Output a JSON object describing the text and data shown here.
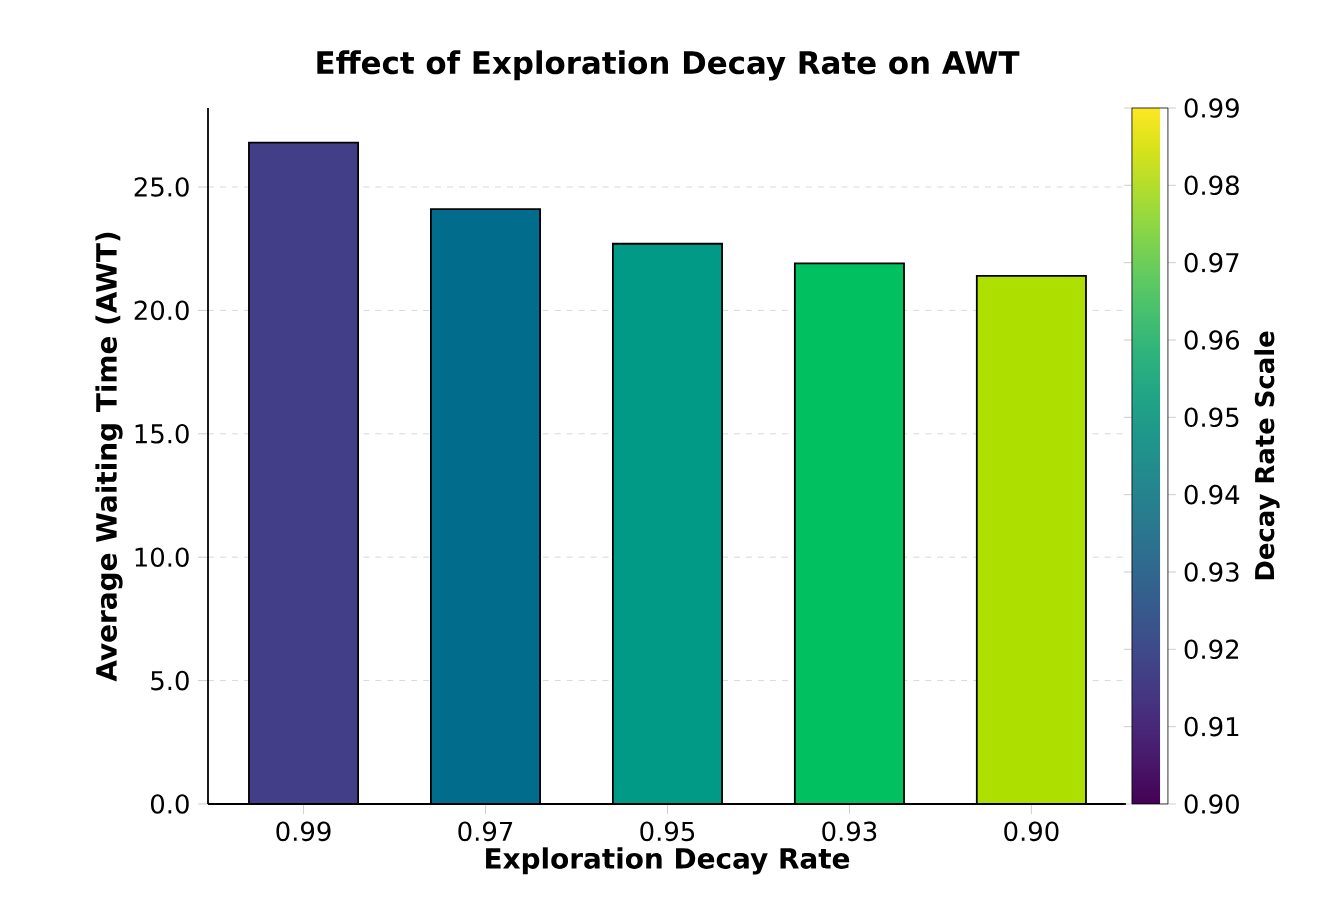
{
  "chart_data": {
    "type": "bar",
    "title": "Effect of Exploration Decay Rate on AWT",
    "xlabel": "Exploration Decay Rate",
    "ylabel": "Average Waiting Time (AWT)",
    "clabel": "Decay Rate Scale",
    "categories": [
      "0.99",
      "0.97",
      "0.95",
      "0.93",
      "0.90"
    ],
    "values": [
      26.8,
      24.1,
      22.7,
      21.9,
      21.4
    ],
    "colors": [
      "#423f88",
      "#026c8c",
      "#009a86",
      "#00c060",
      "#addf00"
    ],
    "ylim": [
      0,
      28.2
    ],
    "yticks": [
      {
        "value": 0,
        "label": "0.0"
      },
      {
        "value": 5,
        "label": "5.0"
      },
      {
        "value": 10,
        "label": "10.0"
      },
      {
        "value": 15,
        "label": "15.0"
      },
      {
        "value": 20,
        "label": "20.0"
      },
      {
        "value": 25,
        "label": "25.0"
      }
    ],
    "clim": [
      0.9,
      0.99
    ],
    "cticks": [
      {
        "value": 0.9,
        "label": "0.90"
      },
      0.91,
      0.92,
      0.93,
      0.94,
      0.95,
      0.96,
      0.97,
      0.98,
      0.99
    ],
    "grid": "y"
  }
}
